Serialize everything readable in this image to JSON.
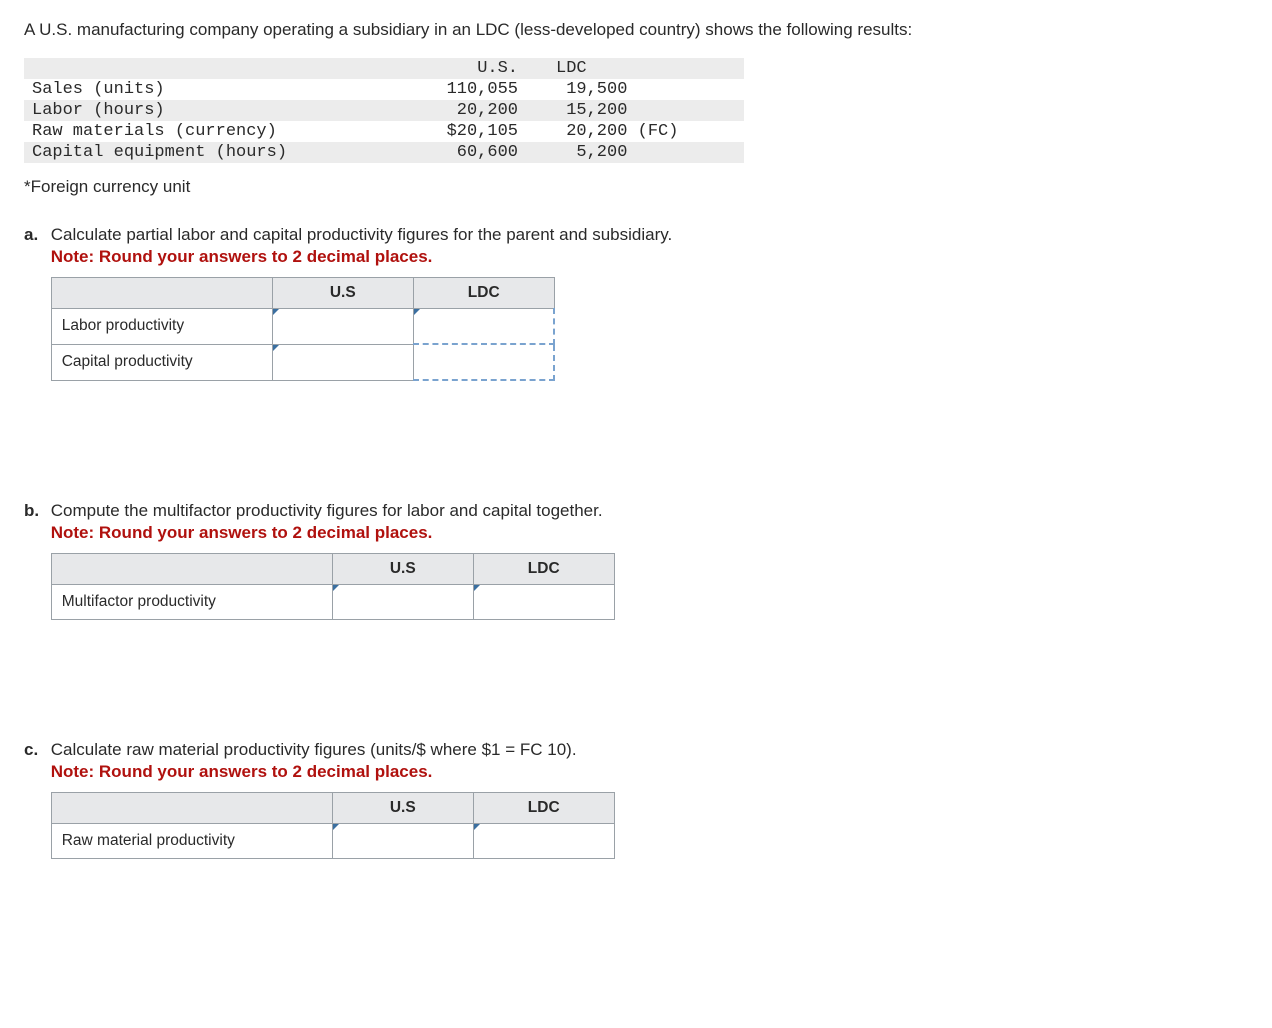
{
  "intro": "A U.S. manufacturing company operating a subsidiary in an LDC (less-developed country) shows the following results:",
  "data_table": {
    "headers": {
      "us": "U.S.",
      "ldc": "LDC"
    },
    "rows": [
      {
        "label": "Sales (units)",
        "us": "110,055",
        "ldc": " 19,500",
        "shaded": false
      },
      {
        "label": "Labor (hours)",
        "us": " 20,200",
        "ldc": " 15,200",
        "shaded": true
      },
      {
        "label": "Raw materials (currency)",
        "us": "$20,105",
        "ldc": " 20,200 (FC)",
        "shaded": false
      },
      {
        "label": "Capital equipment (hours)",
        "us": " 60,600",
        "ldc": "  5,200",
        "shaded": true
      }
    ]
  },
  "footnote": "*Foreign currency unit",
  "questions": {
    "a": {
      "letter": "a.",
      "text": "Calculate partial labor and capital productivity figures for the parent and subsidiary.",
      "note": "Note: Round your answers to 2 decimal places.",
      "cols": [
        "U.S",
        "LDC"
      ],
      "rows": [
        "Labor productivity",
        "Capital productivity"
      ],
      "label_width": "narrow"
    },
    "b": {
      "letter": "b.",
      "text": "Compute the multifactor productivity figures for labor and capital together.",
      "note": "Note: Round your answers to 2 decimal places.",
      "cols": [
        "U.S",
        "LDC"
      ],
      "rows": [
        "Multifactor productivity"
      ],
      "label_width": "wide"
    },
    "c": {
      "letter": "c.",
      "text": "Calculate raw material productivity figures (units/$ where $1 = FC 10).",
      "note": "Note: Round your answers to 2 decimal places.",
      "cols": [
        "U.S",
        "LDC"
      ],
      "rows": [
        "Raw material productivity"
      ],
      "label_width": "wide"
    }
  },
  "colors": {
    "note_color": "#b0110e",
    "triangle_color": "#3b6fa0",
    "header_bg": "#e7e8ea",
    "border_color": "#9aa1a7"
  }
}
